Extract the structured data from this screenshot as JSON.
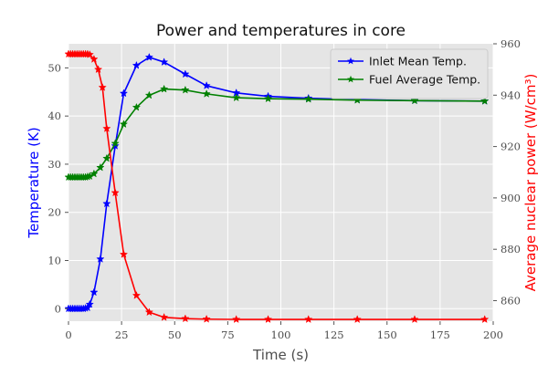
{
  "chart_data": {
    "type": "line",
    "title": "Power and temperatures in core",
    "xlabel": "Time (s)",
    "ylabel_left": "Temperature (K)",
    "ylabel_right": "Average nuclear power (W/cm³)",
    "xlim": [
      0,
      200
    ],
    "ylim_left": [
      -2.6,
      55
    ],
    "ylim_right": [
      852,
      960
    ],
    "x_ticks": [
      0,
      25,
      50,
      75,
      100,
      125,
      150,
      175,
      200
    ],
    "y_ticks_left": [
      0,
      10,
      20,
      30,
      40,
      50
    ],
    "y_ticks_right": [
      860,
      880,
      900,
      920,
      940,
      960
    ],
    "grid": true,
    "legend_position": "top-right",
    "colors": {
      "inlet": "#0000ff",
      "fuel": "#008000",
      "power": "#ff0000",
      "left_axis_label": "#0000ff",
      "right_axis_label": "#ff0000",
      "plot_background": "#e5e5e5",
      "grid": "#ffffff"
    },
    "series": [
      {
        "name": "Inlet Mean Temp.",
        "axis": "left",
        "color": "#0000ff",
        "marker": "star",
        "x": [
          0,
          1,
          2,
          3,
          4,
          5,
          6,
          7,
          8,
          9,
          10,
          12,
          15,
          18,
          22,
          26,
          32,
          38,
          45,
          55,
          65,
          79,
          94,
          113,
          136,
          163,
          196
        ],
        "y": [
          0,
          0,
          0,
          0,
          0,
          0,
          0,
          0,
          0.1,
          0.2,
          0.9,
          3.4,
          10.3,
          21.8,
          33.8,
          44.7,
          50.5,
          52.2,
          51.2,
          48.7,
          46.3,
          44.8,
          44.1,
          43.7,
          43.4,
          43.2,
          43.1
        ]
      },
      {
        "name": "Fuel Average Temp.",
        "axis": "left",
        "color": "#008000",
        "marker": "star",
        "x": [
          0,
          1,
          2,
          3,
          4,
          5,
          6,
          7,
          8,
          9,
          10,
          12,
          15,
          18,
          22,
          26,
          32,
          38,
          45,
          55,
          65,
          79,
          94,
          113,
          136,
          163,
          196
        ],
        "y": [
          27.3,
          27.3,
          27.3,
          27.3,
          27.3,
          27.3,
          27.3,
          27.3,
          27.3,
          27.4,
          27.5,
          28.0,
          29.3,
          31.2,
          34.3,
          38.3,
          41.8,
          44.3,
          45.6,
          45.4,
          44.6,
          43.8,
          43.6,
          43.5,
          43.3,
          43.2,
          43.1
        ]
      },
      {
        "name": "",
        "axis": "right",
        "color": "#ff0000",
        "marker": "star",
        "x": [
          0,
          1,
          2,
          3,
          4,
          5,
          6,
          7,
          8,
          9,
          10,
          12,
          14,
          16,
          18,
          22,
          26,
          32,
          38,
          45,
          55,
          65,
          79,
          94,
          113,
          136,
          163,
          196
        ],
        "y": [
          956,
          956,
          956,
          956,
          956,
          956,
          956,
          956,
          956,
          956,
          955.8,
          954,
          950,
          943,
          927,
          902,
          878,
          862,
          855.5,
          853.5,
          853,
          852.8,
          852.7,
          852.7,
          852.7,
          852.7,
          852.7,
          852.7
        ]
      }
    ]
  }
}
